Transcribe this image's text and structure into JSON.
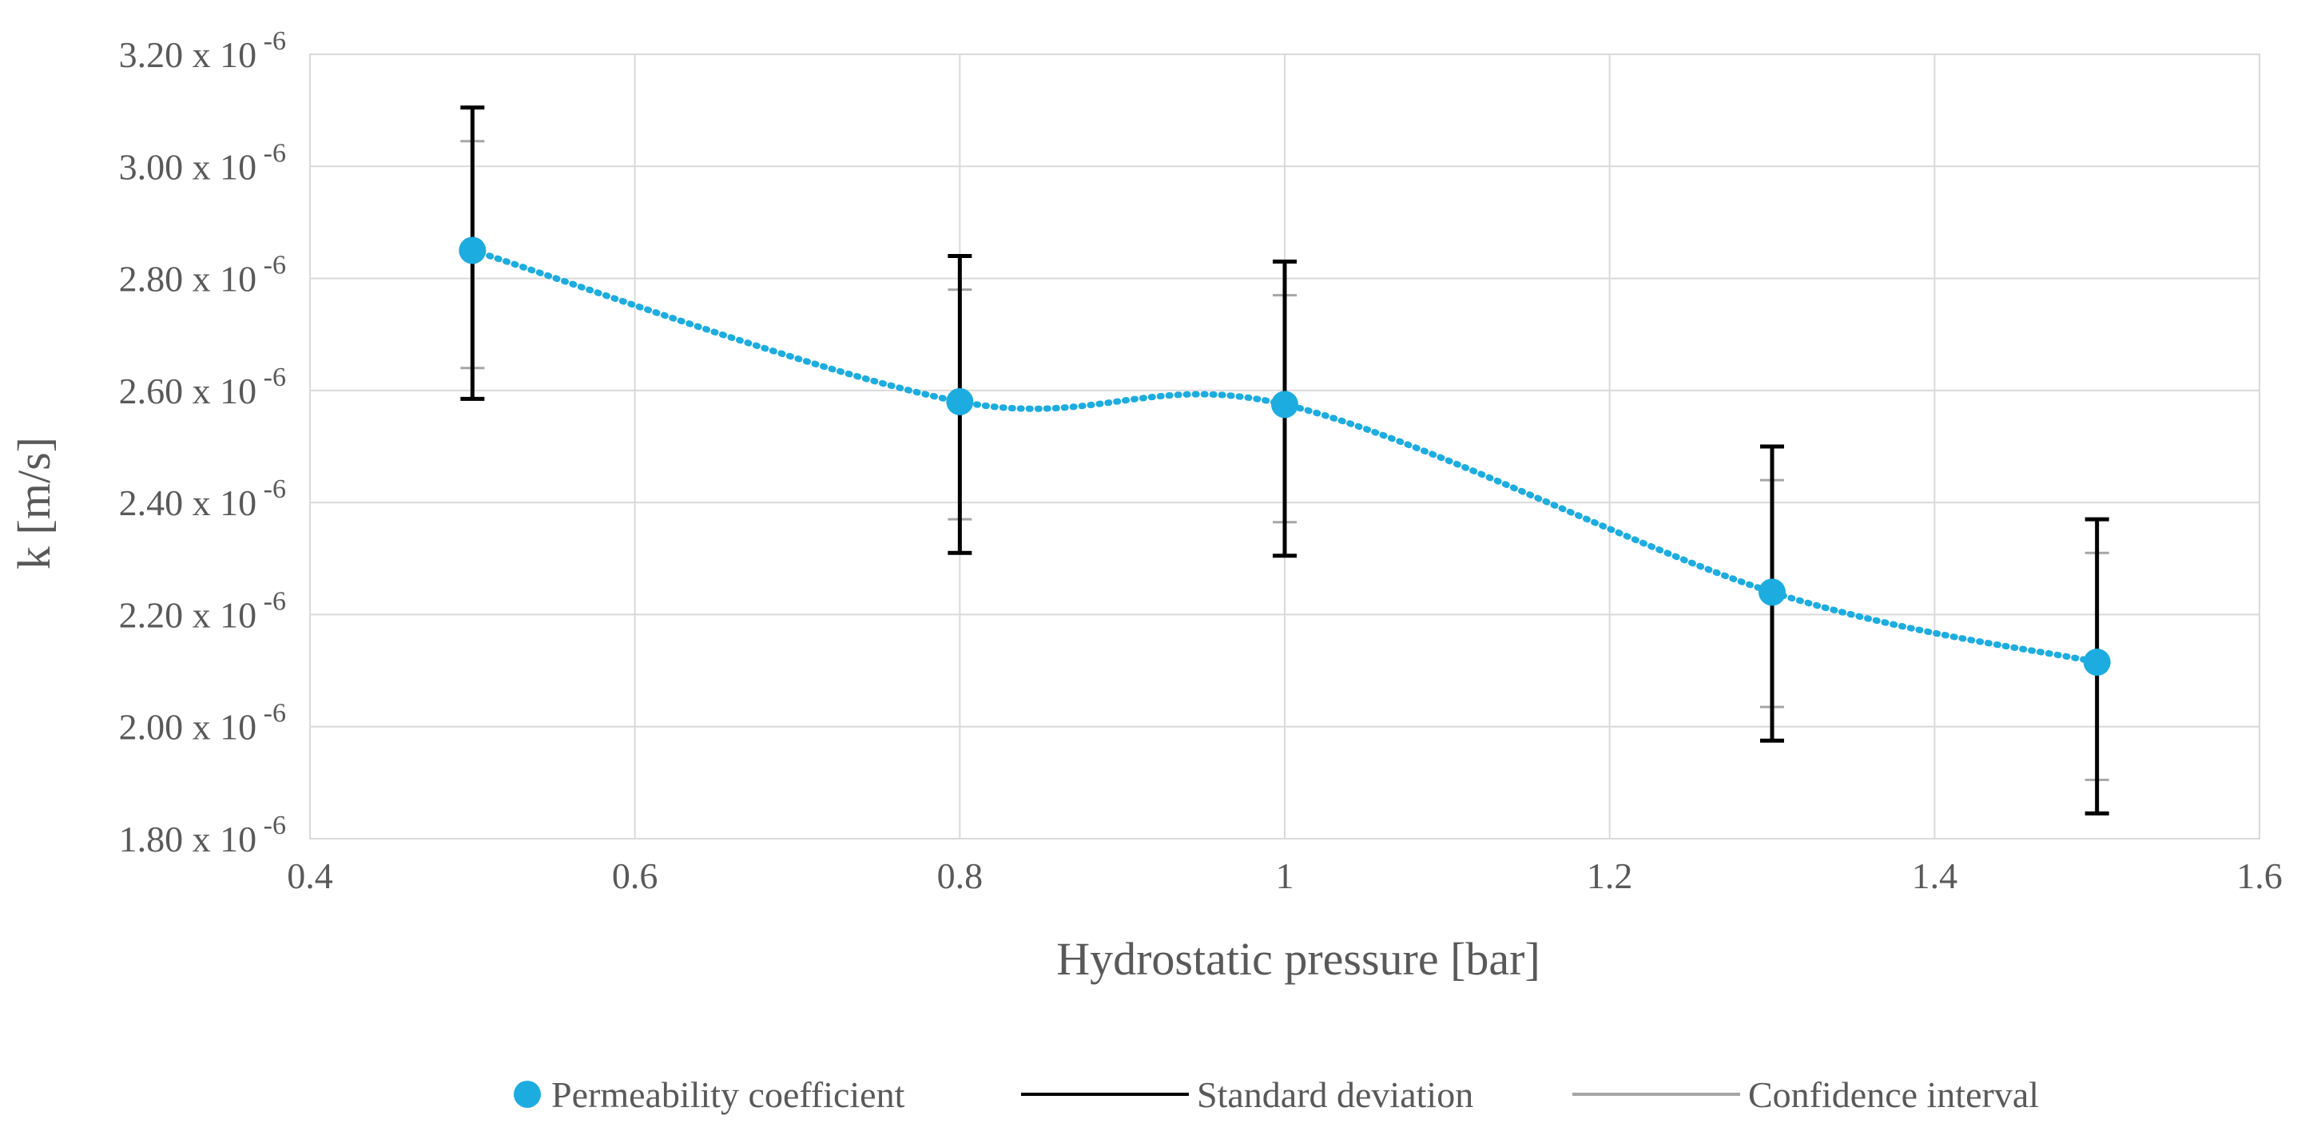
{
  "chart_data": {
    "type": "scatter",
    "title": "",
    "xlabel": "Hydrostatic pressure [bar]",
    "ylabel": "k [m/s]",
    "xlim": [
      0.4,
      1.6
    ],
    "ylim": [
      1.8,
      3.2
    ],
    "x_ticks": [
      {
        "value": 0.4,
        "label": "0.4"
      },
      {
        "value": 0.6,
        "label": "0.6"
      },
      {
        "value": 0.8,
        "label": "0.8"
      },
      {
        "value": 1.0,
        "label": "1"
      },
      {
        "value": 1.2,
        "label": "1.2"
      },
      {
        "value": 1.4,
        "label": "1.4"
      },
      {
        "value": 1.6,
        "label": "1.6"
      }
    ],
    "y_ticks": [
      {
        "value": 1.8,
        "mantissa": "1.80 x 10",
        "exponent": "-6"
      },
      {
        "value": 2.0,
        "mantissa": "2.00 x 10",
        "exponent": "-6"
      },
      {
        "value": 2.2,
        "mantissa": "2.20 x 10",
        "exponent": "-6"
      },
      {
        "value": 2.4,
        "mantissa": "2.40 x 10",
        "exponent": "-6"
      },
      {
        "value": 2.6,
        "mantissa": "2.60 x 10",
        "exponent": "-6"
      },
      {
        "value": 2.8,
        "mantissa": "2.80 x 10",
        "exponent": "-6"
      },
      {
        "value": 3.0,
        "mantissa": "3.00 x 10",
        "exponent": "-6"
      },
      {
        "value": 3.2,
        "mantissa": "3.20 x 10",
        "exponent": "-6"
      }
    ],
    "grid": true,
    "legend_position": "bottom",
    "series": [
      {
        "name": "Permeability coefficient",
        "x": [
          0.5,
          0.8,
          1.0,
          1.3,
          1.5
        ],
        "y": [
          2.85,
          2.58,
          2.575,
          2.24,
          2.115
        ],
        "smoothed_dotted_line": true
      }
    ],
    "error_bars": {
      "standard_deviation": {
        "name": "Standard deviation",
        "lower": [
          2.585,
          2.31,
          2.305,
          1.975,
          1.845
        ],
        "upper": [
          3.105,
          2.84,
          2.83,
          2.5,
          2.37
        ]
      },
      "confidence_interval": {
        "name": "Confidence interval",
        "lower": [
          2.64,
          2.37,
          2.365,
          2.035,
          1.905
        ],
        "upper": [
          3.045,
          2.78,
          2.77,
          2.44,
          2.31
        ]
      }
    },
    "colors": {
      "point": "#1cace0",
      "standard_deviation": "#000000",
      "confidence_interval": "#a6a6a6",
      "grid": "#d9d9d9",
      "text": "#595959"
    }
  },
  "legend": {
    "items": [
      {
        "label": "Permeability coefficient",
        "marker": "circle"
      },
      {
        "label": "Standard deviation",
        "marker": "line"
      },
      {
        "label": "Confidence interval",
        "marker": "line"
      }
    ]
  }
}
